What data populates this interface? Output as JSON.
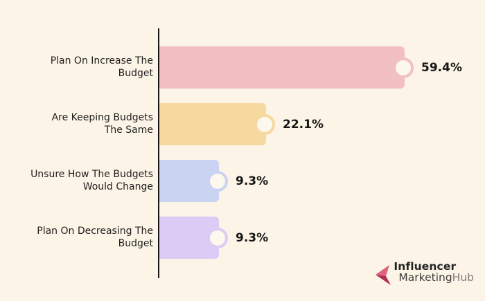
{
  "chart_data": {
    "type": "bar",
    "orientation": "horizontal",
    "title": "",
    "xlabel": "",
    "ylabel": "",
    "grid": false,
    "legend": false,
    "xlim": [
      0,
      66
    ],
    "categories": [
      "Plan On Increase The\nBudget",
      "Are Keeping Budgets\nThe Same",
      "Unsure How The Budgets\nWould Change",
      "Plan On Decreasing The\nBudget"
    ],
    "values": [
      59.4,
      22.1,
      9.3,
      9.3
    ],
    "value_labels": [
      "59.4%",
      "22.1%",
      "9.3%",
      "9.3%"
    ],
    "bar_colors": [
      "#f2bfc2",
      "#f6d99e",
      "#cbd3f3",
      "#dccbf5"
    ]
  },
  "colors": {
    "background": "#fcf4e6",
    "axis": "#161616",
    "category_text": "#1f1f1f",
    "value_text": "#161616",
    "circle_fill": "#fdf8ee",
    "logo_pink": "#e0627f",
    "logo_crimson": "#b02e58"
  },
  "logo": {
    "line1": "Influencer",
    "line2_dark": "Marketing",
    "line2_light": "Hub"
  }
}
